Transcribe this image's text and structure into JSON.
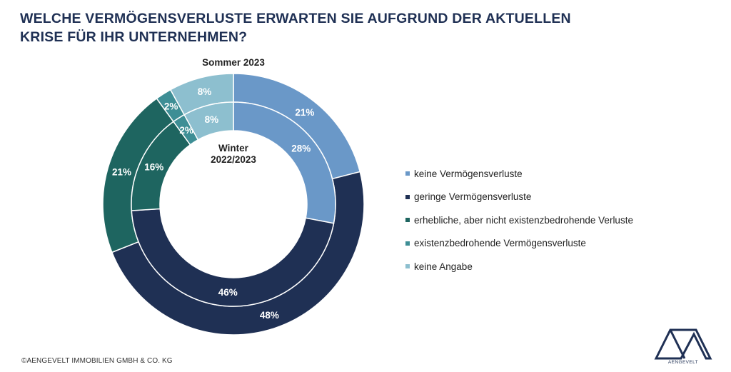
{
  "title_lines": [
    "WELCHE VERMÖGENSVERLUSTE ERWARTEN SIE AUFGRUND DER AKTUELLEN",
    "KRISE FÜR IHR UNTERNEHMEN?"
  ],
  "chart_data": {
    "type": "donut",
    "categories": [
      "keine Vermögensverluste",
      "geringe Vermögensverluste",
      "erhebliche, aber nicht existenzbedrohende Verluste",
      "existenzbedrohende Vermögensverluste",
      "keine Angabe"
    ],
    "colors": [
      "#6a98c8",
      "#1f3054",
      "#1e6560",
      "#3e8e95",
      "#8dbfcf"
    ],
    "series": [
      {
        "name": "Sommer 2023",
        "ring": "outer",
        "values": [
          21,
          48,
          21,
          2,
          8
        ],
        "labels": [
          "21%",
          "48%",
          "21%",
          "2%",
          "8%"
        ]
      },
      {
        "name": "Winter 2022/2023",
        "ring": "inner",
        "values": [
          28,
          46,
          16,
          2,
          8
        ],
        "labels": [
          "28%",
          "46%",
          "16%",
          "2%",
          "8%"
        ]
      }
    ],
    "outer_label": "Sommer 2023",
    "inner_label_lines": [
      "Winter",
      "2022/2023"
    ],
    "legend_position": "right"
  },
  "footer": {
    "copyright": "©AENGEVELT IMMOBILIEN GMBH & CO. KG"
  },
  "logo": {
    "name": "aengevelt-logo",
    "text": "AENGEVELT"
  }
}
